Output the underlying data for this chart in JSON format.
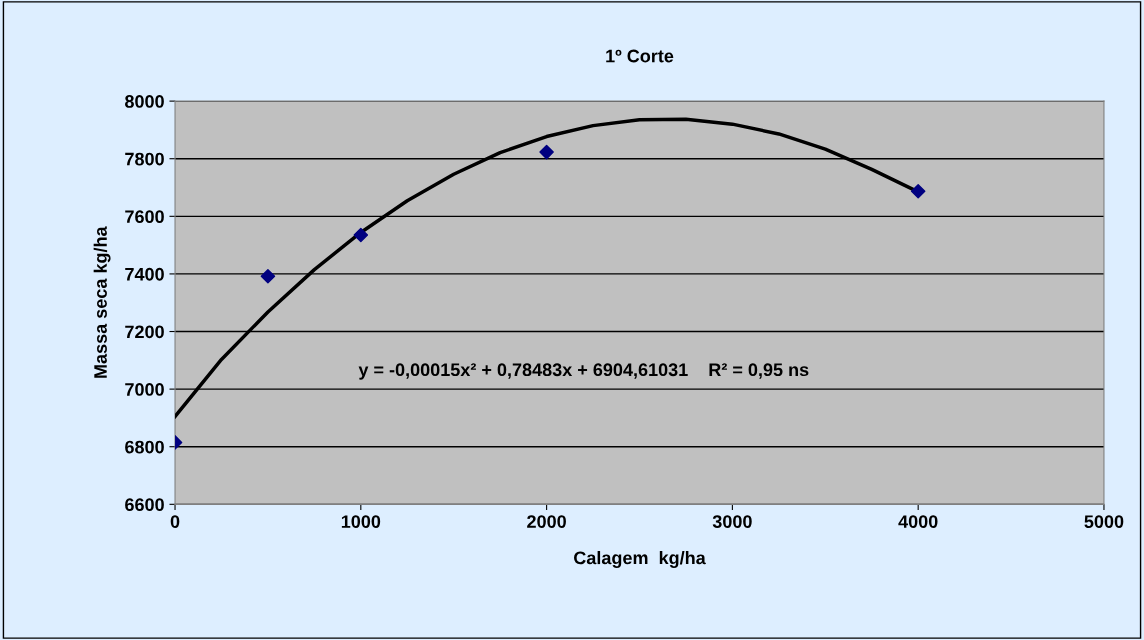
{
  "chart_data": {
    "type": "scatter",
    "title": "1º Corte",
    "xlabel": "Calagem  kg/ha",
    "ylabel": "Massa seca kg/ha",
    "series": [
      {
        "color": "#000080",
        "marker": "diamond",
        "x": [
          0,
          500,
          1000,
          2000,
          4000
        ],
        "values": [
          6815,
          7392,
          7535,
          7823,
          7687
        ]
      },
      {
        "type": "line",
        "color": "#000000",
        "marker": "none",
        "line_style": "solid",
        "x": [
          0,
          250,
          500,
          750,
          1000,
          1250,
          1500,
          1750,
          2000,
          2250,
          2500,
          2750,
          3000,
          3250,
          3500,
          3750,
          4000
        ],
        "values": [
          6905,
          7103,
          7268,
          7415,
          7544,
          7654,
          7746,
          7821,
          7877,
          7915,
          7935,
          7937,
          7920,
          7886,
          7833,
          7763,
          7685
        ]
      }
    ],
    "annotations": [
      "y = -0,00015x² + 0,78483x + 6904,61031    R² = 0,95 ns"
    ],
    "xlim": [
      0,
      5000
    ],
    "xticks": [
      0,
      1000,
      2000,
      3000,
      4000,
      5000
    ],
    "ylim": [
      6600,
      8000
    ],
    "yticks": [
      6600,
      6800,
      7000,
      7200,
      7400,
      7600,
      7800,
      8000
    ],
    "grid": "y",
    "legend": false
  }
}
